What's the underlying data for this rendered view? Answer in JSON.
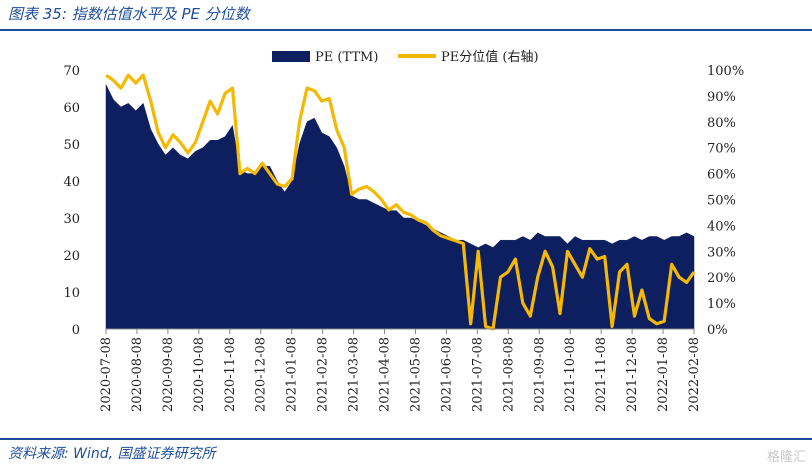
{
  "header": {
    "title": "图表 35:  指数估值水平及 PE 分位数"
  },
  "footer": {
    "source": "资料来源:  Wind, 国盛证券研究所",
    "watermark": "格隆汇"
  },
  "colors": {
    "pe": "#0d1f5e",
    "pct": "#f6b800",
    "accent": "#1f4e9c"
  },
  "chart_data": {
    "type": "area",
    "legend": [
      "PE (TTM)",
      "PE分位值 (右轴)"
    ],
    "legend_position": "top-center",
    "grid": false,
    "y_left_ticks": [
      "0",
      "10",
      "20",
      "30",
      "40",
      "50",
      "60",
      "70"
    ],
    "y_right_ticks": [
      "0%",
      "10%",
      "20%",
      "30%",
      "40%",
      "50%",
      "60%",
      "70%",
      "80%",
      "90%",
      "100%"
    ],
    "x_ticks": [
      "2020-07-08",
      "2020-08-08",
      "2020-09-08",
      "2020-10-08",
      "2020-11-08",
      "2020-12-08",
      "2021-01-08",
      "2021-02-08",
      "2021-03-08",
      "2021-04-08",
      "2021-05-08",
      "2021-06-08",
      "2021-07-08",
      "2021-08-08",
      "2021-09-08",
      "2021-10-08",
      "2021-11-08",
      "2021-12-08",
      "2022-01-08",
      "2022-02-08"
    ],
    "ylim_left": [
      0,
      70
    ],
    "ylim_right": [
      0,
      100
    ],
    "series": [
      {
        "name": "PE (TTM)",
        "axis": "left",
        "type": "area",
        "values": [
          66,
          62,
          60,
          61,
          59,
          61,
          54,
          50,
          47,
          49,
          47,
          46,
          48,
          49,
          51,
          51,
          52,
          55,
          43,
          42,
          42,
          44,
          44,
          40,
          37,
          40,
          50,
          56,
          57,
          53,
          52,
          49,
          44,
          36,
          35,
          35,
          34,
          33,
          32,
          32,
          30,
          30,
          29,
          28,
          27,
          26,
          25,
          24,
          24,
          23,
          22,
          23,
          22,
          24,
          24,
          24,
          25,
          24,
          26,
          25,
          25,
          25,
          23,
          25,
          24,
          24,
          24,
          24,
          23,
          24,
          24,
          25,
          24,
          25,
          25,
          24,
          25,
          25,
          26,
          25
        ]
      },
      {
        "name": "PE分位值 (右轴)",
        "axis": "right",
        "type": "line",
        "values": [
          98,
          96,
          93,
          98,
          95,
          98,
          88,
          76,
          70,
          75,
          72,
          68,
          72,
          80,
          88,
          83,
          91,
          93,
          60,
          62,
          60,
          64,
          60,
          56,
          55,
          58,
          80,
          93,
          92,
          88,
          89,
          77,
          70,
          52,
          54,
          55,
          53,
          50,
          46,
          48,
          45,
          44,
          42,
          41,
          38,
          36,
          35,
          34,
          33,
          2,
          30,
          1,
          0,
          20,
          22,
          27,
          10,
          5,
          20,
          30,
          24,
          6,
          30,
          25,
          20,
          31,
          27,
          28,
          1,
          22,
          25,
          5,
          15,
          4,
          2,
          3,
          25,
          20,
          18,
          22
        ]
      }
    ]
  }
}
